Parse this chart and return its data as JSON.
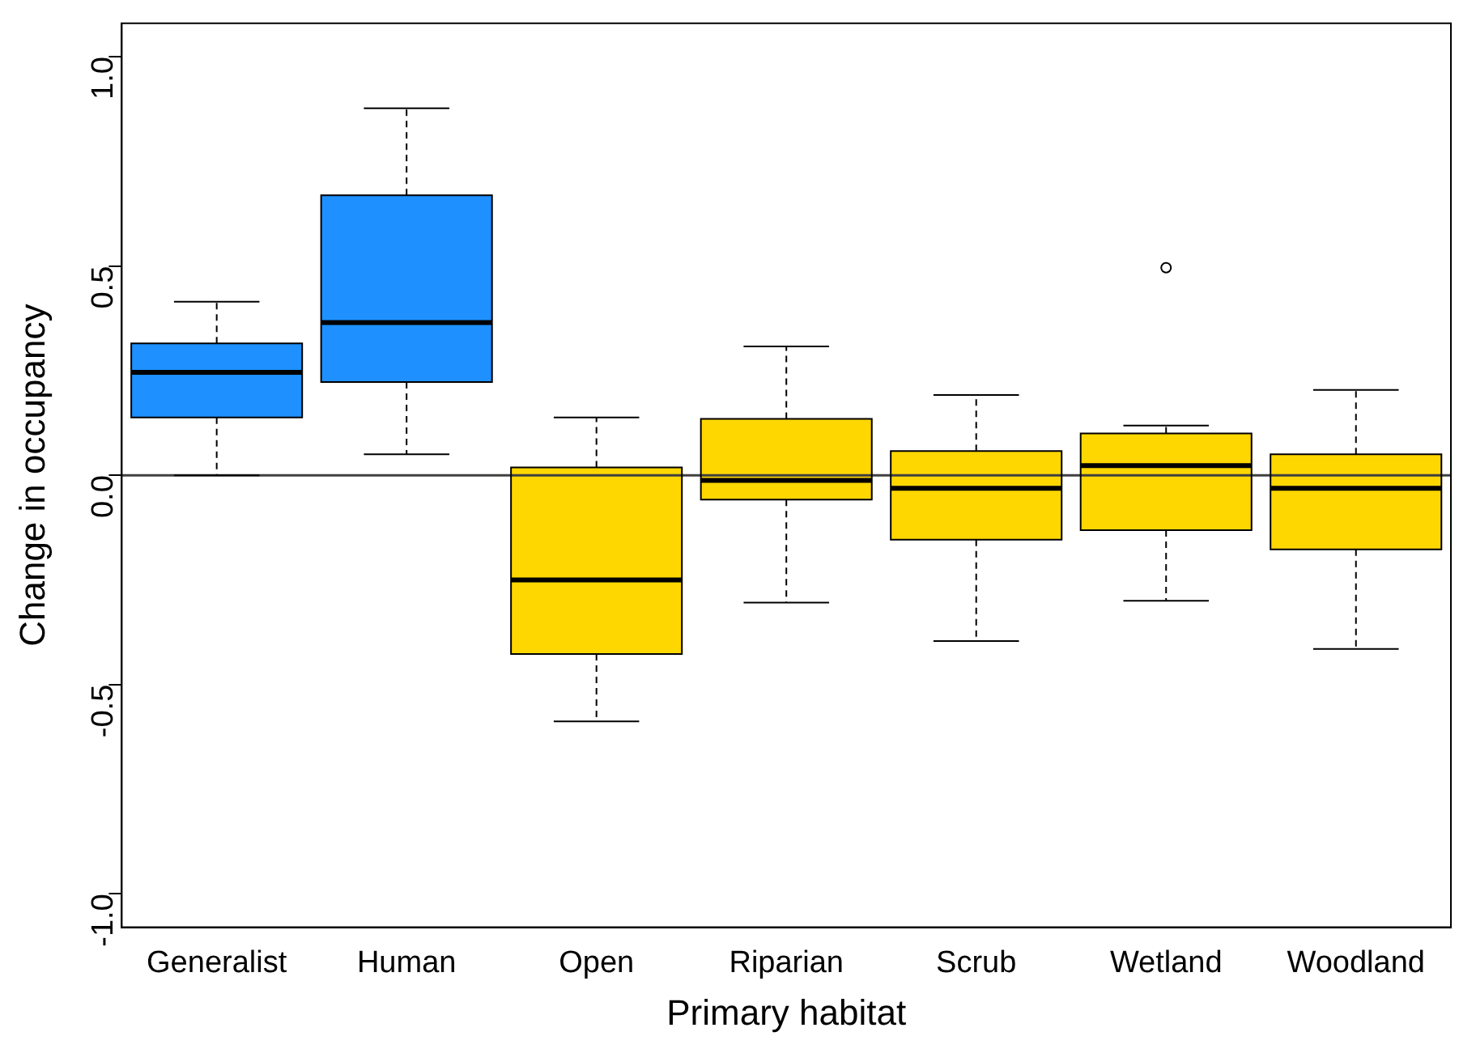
{
  "chart_data": {
    "type": "box",
    "xlabel": "Primary habitat",
    "ylabel": "Change in occupancy",
    "categories": [
      "Generalist",
      "Human",
      "Open",
      "Riparian",
      "Scrub",
      "Wetland",
      "Woodland"
    ],
    "colors": [
      "#1e90ff",
      "#1e90ff",
      "#ffd700",
      "#ffd700",
      "#ffd700",
      "#ffd700",
      "#ffd700"
    ],
    "boxes": [
      {
        "low": 0.0,
        "q1": 0.138,
        "median": 0.246,
        "q3": 0.315,
        "high": 0.415
      },
      {
        "low": 0.05,
        "q1": 0.223,
        "median": 0.365,
        "q3": 0.669,
        "high": 0.877
      },
      {
        "low": -0.588,
        "q1": -0.427,
        "median": -0.25,
        "q3": 0.019,
        "high": 0.138
      },
      {
        "low": -0.304,
        "q1": -0.058,
        "median": -0.012,
        "q3": 0.135,
        "high": 0.308
      },
      {
        "low": -0.396,
        "q1": -0.154,
        "median": -0.031,
        "q3": 0.058,
        "high": 0.192
      },
      {
        "low": -0.3,
        "q1": -0.131,
        "median": 0.023,
        "q3": 0.1,
        "high": 0.119,
        "outliers": [
          0.496
        ]
      },
      {
        "low": -0.415,
        "q1": -0.177,
        "median": -0.031,
        "q3": 0.05,
        "high": 0.204
      }
    ],
    "ylim": [
      -1.08,
      1.08
    ],
    "yticks": [
      {
        "value": -1,
        "label": "-1.0"
      },
      {
        "value": -0.5,
        "label": "-0.5"
      },
      {
        "value": 0,
        "label": "0.0"
      },
      {
        "value": 0.5,
        "label": "0.5"
      },
      {
        "value": 1,
        "label": "1.0"
      }
    ],
    "ref_lines": [
      {
        "axis": "y",
        "value": 0,
        "color": "#404040"
      }
    ],
    "grid": false,
    "legend": false
  }
}
